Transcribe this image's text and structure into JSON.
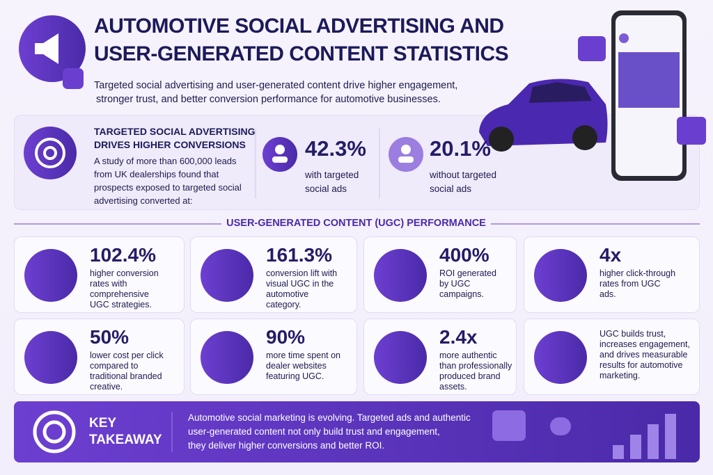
{
  "header": {
    "title_lines": [
      "AUTOMOTIVE SOCIAL ADVERTISING AND",
      "USER-GENERATED CONTENT STATISTICS"
    ],
    "subtitle_lines": [
      "Targeted social advertising and user-generated content drive higher engagement,",
      "stronger trust, and better conversion performance for automotive businesses."
    ]
  },
  "study": {
    "heading_lines": [
      "TARGETED SOCIAL ADVERTISING",
      "DRIVES HIGHER CONVERSIONS"
    ],
    "body_lines": [
      "A study of more than 600,000 leads",
      "from UK dealerships found that",
      "prospects exposed to targeted social",
      "advertising converted at:"
    ],
    "stats": [
      {
        "value": "42.3%",
        "label_lines": [
          "with targeted",
          "social ads"
        ]
      },
      {
        "value": "20.1%",
        "label_lines": [
          "without targeted",
          "social ads"
        ]
      }
    ]
  },
  "ugc": {
    "heading": "USER-GENERATED CONTENT (UGC) PERFORMANCE",
    "cards": [
      {
        "value": "102.4%",
        "desc_lines": [
          "higher conversion",
          "rates with",
          "comprehensive",
          "UGC strategies."
        ]
      },
      {
        "value": "161.3%",
        "desc_lines": [
          "conversion lift with",
          "visual UGC in the",
          "automotive",
          "category."
        ]
      },
      {
        "value": "400%",
        "desc_lines": [
          "ROI generated",
          "by UGC",
          "campaigns."
        ]
      },
      {
        "value": "4x",
        "desc_lines": [
          "higher click-through",
          "rates from UGC",
          "ads."
        ]
      },
      {
        "value": "50%",
        "desc_lines": [
          "lower cost per click",
          "compared to",
          "traditional branded",
          "creative."
        ]
      },
      {
        "value": "90%",
        "desc_lines": [
          "more time spent on",
          "dealer websites",
          "featuring UGC."
        ]
      },
      {
        "value": "2.4x",
        "desc_lines": [
          "more authentic",
          "than professionally",
          "produced brand",
          "assets."
        ]
      },
      {
        "desc_lines": [
          "UGC builds trust,",
          "increases engagement,",
          "and drives measurable",
          "results for automotive",
          "marketing."
        ]
      }
    ]
  },
  "takeaway": {
    "label_lines": [
      "KEY",
      "TAKEAWAY"
    ],
    "text_lines": [
      "Automotive social marketing is evolving. Targeted ads and authentic",
      "user-generated content not only build trust and engagement,",
      "they deliver higher conversions and better ROI."
    ]
  }
}
